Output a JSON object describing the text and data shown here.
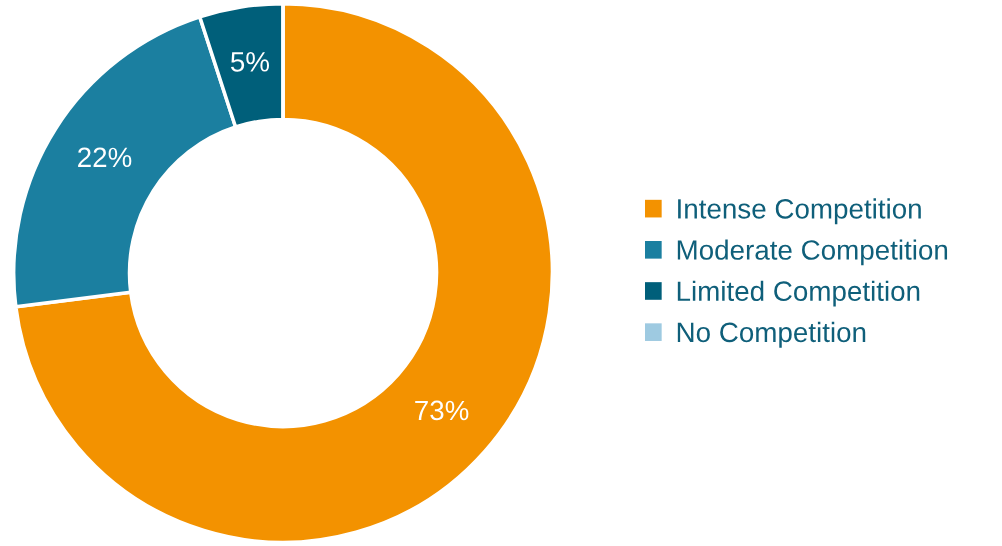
{
  "chart_data": {
    "type": "donut",
    "categories": [
      "Intense Competition",
      "Moderate Competition",
      "Limited Competition",
      "No Competition"
    ],
    "values": [
      73,
      22,
      5,
      0
    ],
    "colors": [
      "#f39200",
      "#1b7fa0",
      "#005f7a",
      "#9ecae1"
    ],
    "value_labels": [
      "73%",
      "22%",
      "5%",
      null
    ],
    "legend": "right"
  }
}
